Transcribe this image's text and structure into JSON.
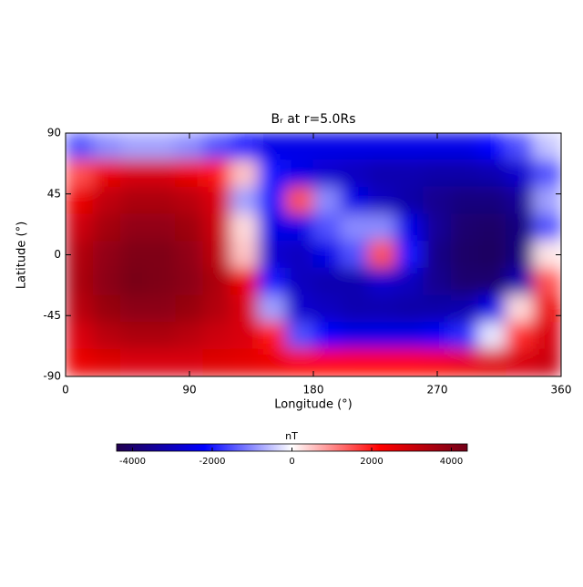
{
  "chart_data": {
    "type": "heatmap",
    "title": "Bᵣ at r=5.0Rs",
    "xlabel": "Longitude (°)",
    "ylabel": "Latitude (°)",
    "x": [
      10,
      30,
      50,
      70,
      90,
      110,
      130,
      150,
      170,
      190,
      210,
      230,
      250,
      270,
      290,
      310,
      330,
      350
    ],
    "y": [
      80,
      60,
      40,
      20,
      0,
      -20,
      -40,
      -60,
      -80
    ],
    "z": [
      [
        -1500,
        -1000,
        -800,
        -800,
        -1000,
        -1500,
        -2000,
        -2500,
        -2500,
        -2500,
        -2500,
        -2500,
        -2500,
        -2500,
        -2500,
        -2200,
        -1500,
        -500
      ],
      [
        1500,
        2500,
        2800,
        2800,
        2500,
        2000,
        500,
        -2000,
        -2500,
        -2800,
        -3000,
        -3200,
        -3200,
        -3300,
        -3300,
        -3200,
        -2800,
        -1500
      ],
      [
        2500,
        3200,
        3500,
        3500,
        3300,
        2800,
        -800,
        -2000,
        1500,
        -1000,
        -2500,
        -3000,
        -3300,
        -3600,
        -3800,
        -3800,
        -3500,
        -800
      ],
      [
        3000,
        3600,
        3900,
        3900,
        3700,
        3000,
        300,
        -2500,
        -2500,
        -1500,
        -1000,
        -1000,
        -2500,
        -3500,
        -4000,
        -4100,
        -3800,
        -1500
      ],
      [
        3400,
        3900,
        4200,
        4200,
        3900,
        3200,
        500,
        -2800,
        -3000,
        -2500,
        -1500,
        1500,
        -2000,
        -3700,
        -4100,
        -4200,
        -3800,
        200
      ],
      [
        3500,
        4000,
        4300,
        4200,
        4000,
        3500,
        2500,
        -2000,
        -3000,
        -3200,
        -3200,
        -2800,
        -3000,
        -3600,
        -4000,
        -4000,
        -3200,
        1500
      ],
      [
        3300,
        3800,
        4000,
        4000,
        3800,
        3400,
        2800,
        -800,
        -2800,
        -3000,
        -3200,
        -3200,
        -3300,
        -3300,
        -3200,
        -2500,
        300,
        2500
      ],
      [
        2800,
        3300,
        3500,
        3500,
        3300,
        3000,
        2800,
        2000,
        -1500,
        -2200,
        -2500,
        -2500,
        -2500,
        -2300,
        -1800,
        -200,
        1800,
        2800
      ],
      [
        2500,
        2700,
        2800,
        2800,
        2800,
        2700,
        2600,
        2500,
        2300,
        2200,
        2200,
        2200,
        2200,
        2300,
        2500,
        2700,
        2800,
        3000
      ]
    ],
    "xlim": [
      0,
      360
    ],
    "ylim": [
      -90,
      90
    ],
    "xticks": [
      0,
      90,
      180,
      270,
      360
    ],
    "yticks": [
      -90,
      -45,
      0,
      45,
      90
    ],
    "colormap": [
      "#22004e",
      "#0000ff",
      "#ffffff",
      "#ff0000",
      "#720018"
    ],
    "colorbar": {
      "label": "nT",
      "lim": [
        -4400,
        4400
      ],
      "ticks": [
        -4000,
        -2000,
        0,
        2000,
        4000
      ]
    }
  }
}
